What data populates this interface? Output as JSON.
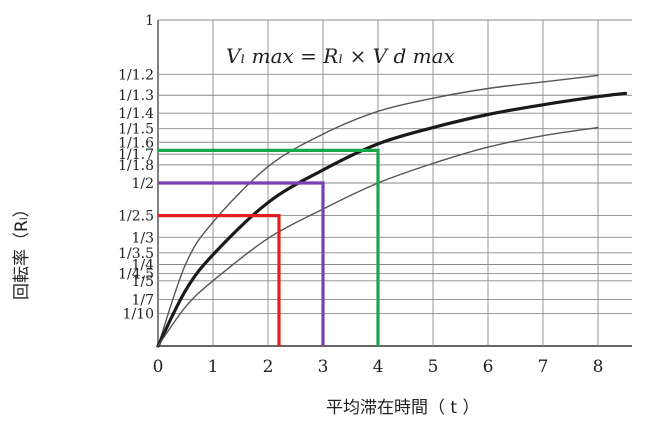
{
  "chart_data": {
    "type": "line",
    "title": "",
    "formula": "Vₗ max = Rₗ × V d max",
    "xlabel": "平均滞在時間（ t ）",
    "ylabel": "回転率（Rₗ）",
    "xlim": [
      0,
      8.8
    ],
    "x_ticks": [
      0,
      1,
      2,
      3,
      4,
      5,
      6,
      7,
      8
    ],
    "x_tick_labels": [
      "0",
      "1",
      "2",
      "3",
      "4",
      "5",
      "6",
      "7",
      "8"
    ],
    "y_scale": "reciprocal",
    "y_ticks": [
      {
        "label": "1",
        "value": 1.0
      },
      {
        "label": "1/1.2",
        "value": 0.8333
      },
      {
        "label": "1/1.3",
        "value": 0.7692
      },
      {
        "label": "1/1.4",
        "value": 0.7143
      },
      {
        "label": "1/1.5",
        "value": 0.6667
      },
      {
        "label": "1/1.6",
        "value": 0.625
      },
      {
        "label": "1/1.7",
        "value": 0.5882
      },
      {
        "label": "1/1.8",
        "value": 0.5556
      },
      {
        "label": "1/2",
        "value": 0.5
      },
      {
        "label": "1/2.5",
        "value": 0.4
      },
      {
        "label": "1/3",
        "value": 0.3333
      },
      {
        "label": "1/3.5",
        "value": 0.2857
      },
      {
        "label": "1/4",
        "value": 0.25
      },
      {
        "label": "1/4.5",
        "value": 0.2222
      },
      {
        "label": "1/5",
        "value": 0.2
      },
      {
        "label": "1/7",
        "value": 0.1429
      },
      {
        "label": "1/10",
        "value": 0.1
      }
    ],
    "grid": true,
    "series": [
      {
        "color": "#555555",
        "style": "thin",
        "x": [
          0,
          0.5,
          1,
          2,
          3,
          4,
          5,
          6,
          7,
          8
        ],
        "y": [
          0,
          0.25,
          0.38,
          0.55,
          0.65,
          0.72,
          0.76,
          0.79,
          0.81,
          0.83
        ]
      },
      {
        "color": "#1a1a1a",
        "style": "thick",
        "x": [
          0,
          0.5,
          1,
          2,
          3,
          4,
          5,
          6,
          7,
          8,
          8.5
        ],
        "y": [
          0,
          0.17,
          0.28,
          0.44,
          0.54,
          0.62,
          0.67,
          0.71,
          0.74,
          0.765,
          0.775
        ]
      },
      {
        "color": "#555555",
        "style": "thin",
        "x": [
          0,
          0.5,
          1,
          2,
          3,
          4,
          5,
          6,
          7,
          8
        ],
        "y": [
          0,
          0.12,
          0.2,
          0.33,
          0.42,
          0.5,
          0.56,
          0.61,
          0.645,
          0.67
        ]
      }
    ],
    "annotations": [
      {
        "color": "#e02020",
        "x": 2.2,
        "y": 0.4
      },
      {
        "color": "#7a3fb0",
        "x": 3.0,
        "y": 0.5
      },
      {
        "color": "#18a84a",
        "x": 4.0,
        "y": 0.6
      }
    ]
  }
}
